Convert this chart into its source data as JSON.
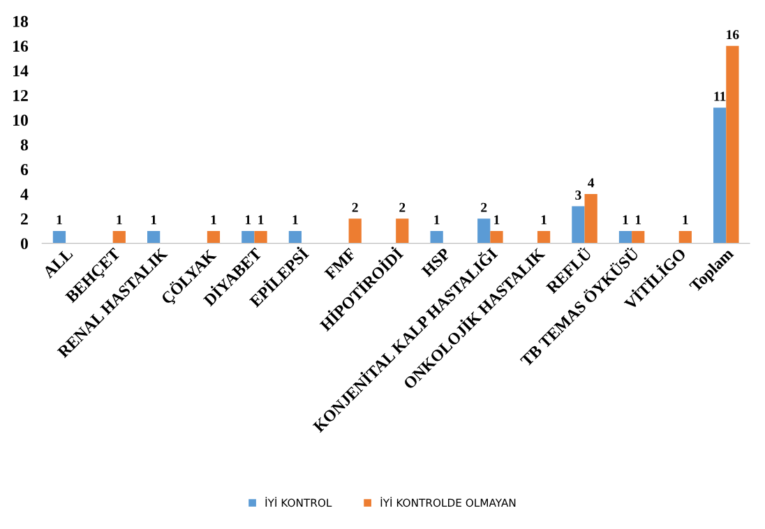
{
  "chart_data": {
    "type": "bar",
    "categories": [
      "ALL",
      "BEHÇET",
      "RENAL HASTALIK",
      "ÇÖLYAK",
      "DİYABET",
      "EPİLEPSİ",
      "FMF",
      "HİPOTİROİDİ",
      "HSP",
      "KONJENİTAL KALP HASTALIĞI",
      "ONKOLOJİK HASTALIK",
      "REFLÜ",
      "TB TEMAS ÖYKÜSÜ",
      "VİTİLİGO",
      "Toplam"
    ],
    "series": [
      {
        "name": "İYİ KONTROL",
        "color": "#5b9bd5",
        "values": [
          1,
          null,
          1,
          null,
          1,
          1,
          null,
          null,
          1,
          2,
          null,
          3,
          1,
          null,
          11
        ]
      },
      {
        "name": "İYİ KONTROLDE OLMAYAN",
        "color": "#ed7d31",
        "values": [
          null,
          1,
          null,
          1,
          1,
          null,
          2,
          2,
          null,
          1,
          1,
          4,
          1,
          1,
          16
        ]
      }
    ],
    "ylim": [
      0,
      18
    ],
    "yticks": [
      0,
      2,
      4,
      6,
      8,
      10,
      12,
      14,
      16,
      18
    ],
    "grid": false,
    "legend": "bottom",
    "data_labels": true
  }
}
